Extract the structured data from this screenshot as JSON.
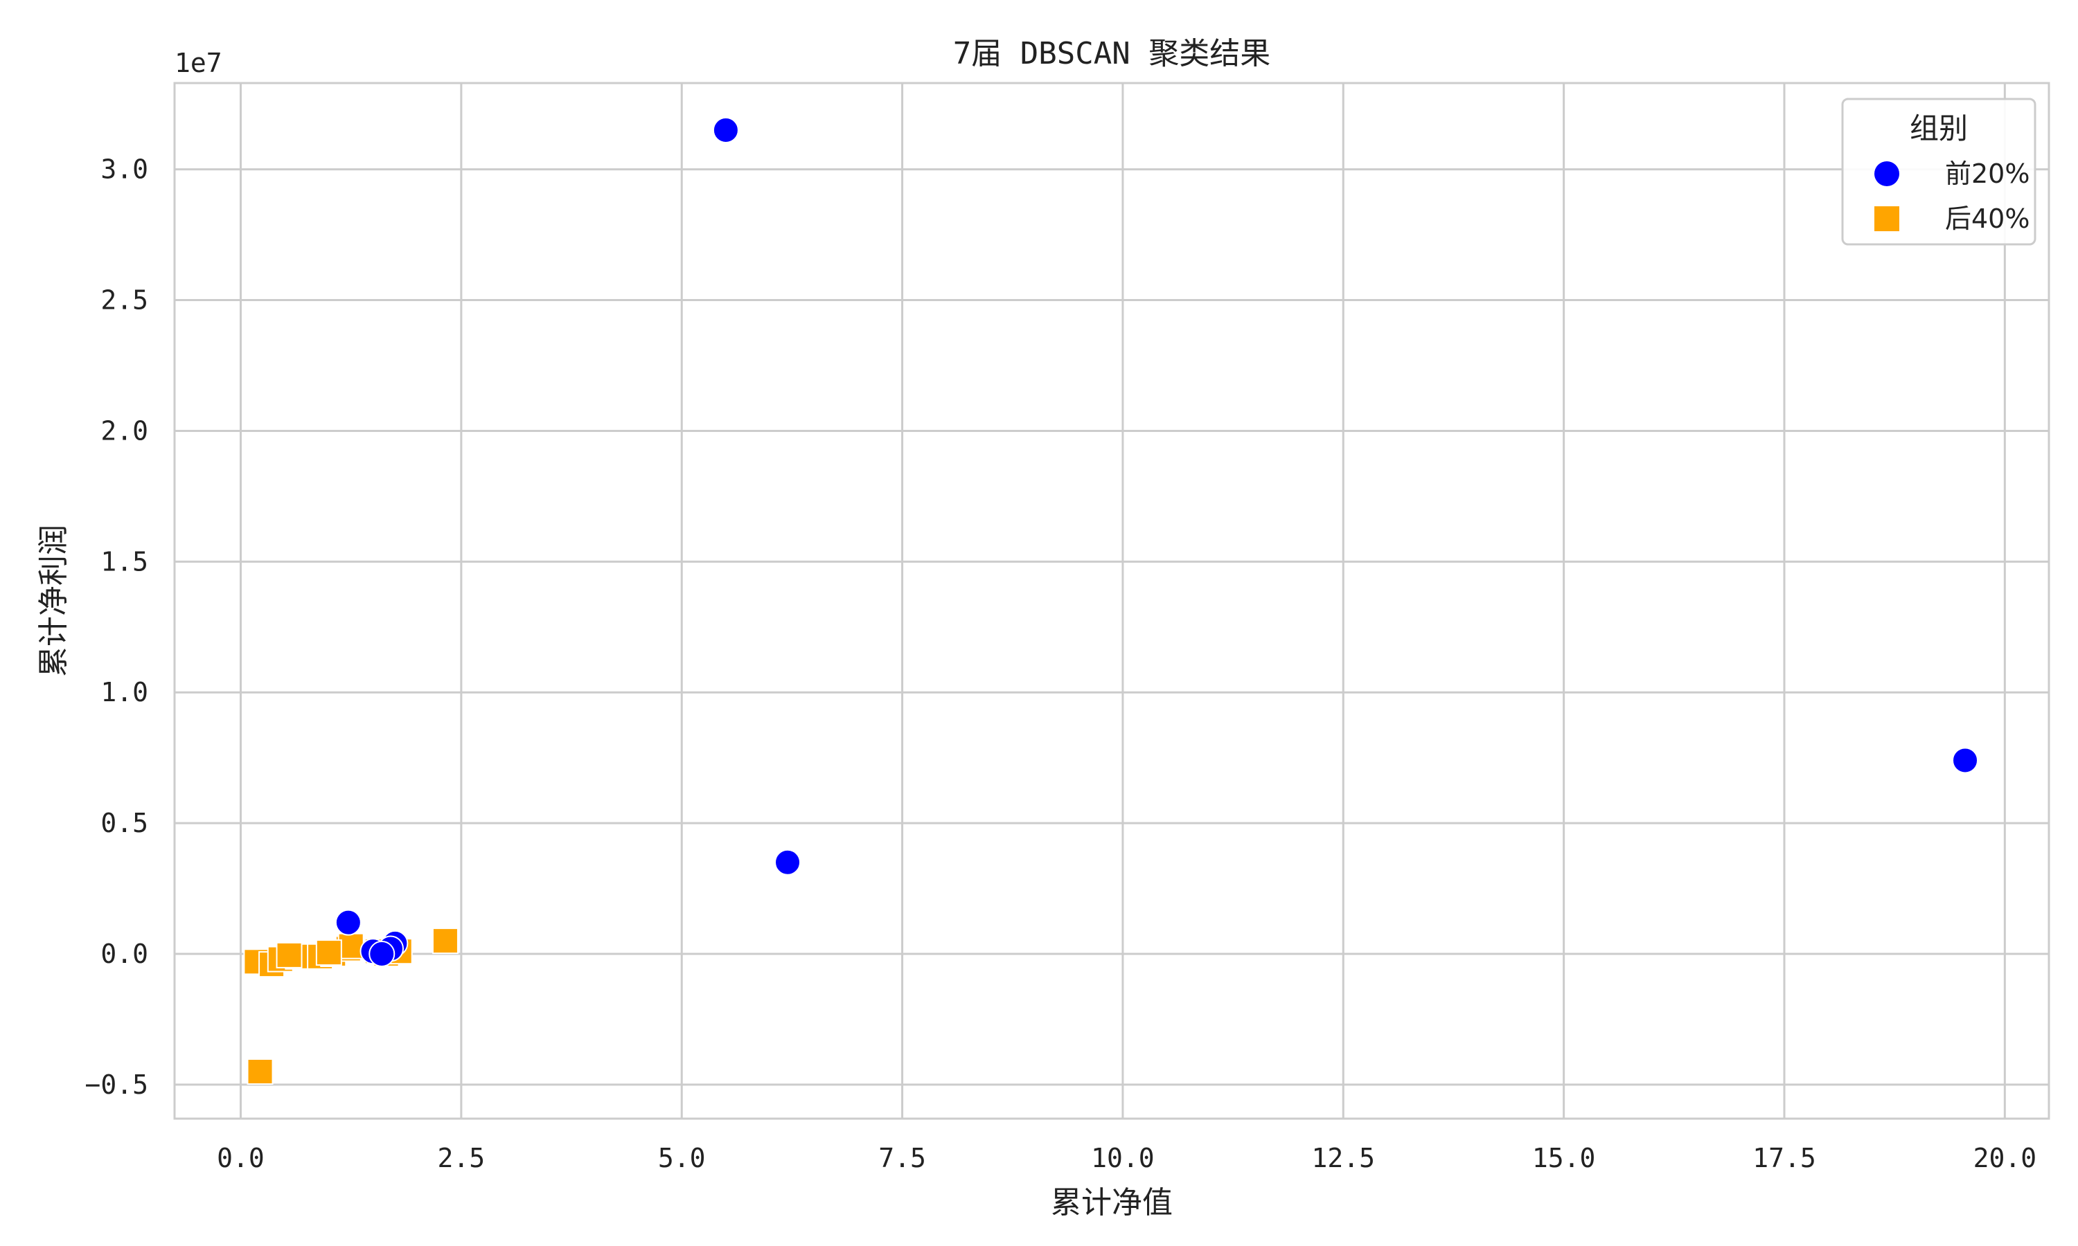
{
  "chart_data": {
    "type": "scatter",
    "title": "7届 DBSCAN 聚类结果",
    "xlabel": "累计净值",
    "ylabel": "累计净利润",
    "y_offset_label": "1e7",
    "xlim": [
      -0.75,
      20.5
    ],
    "ylim": [
      -0.63,
      3.33
    ],
    "x_ticks": [
      0.0,
      2.5,
      5.0,
      7.5,
      10.0,
      12.5,
      15.0,
      17.5,
      20.0
    ],
    "x_tick_labels": [
      "0.0",
      "2.5",
      "5.0",
      "7.5",
      "10.0",
      "12.5",
      "15.0",
      "17.5",
      "20.0"
    ],
    "y_ticks": [
      -0.5,
      0.0,
      0.5,
      1.0,
      1.5,
      2.0,
      2.5,
      3.0
    ],
    "y_tick_labels": [
      "−0.5",
      "0.0",
      "0.5",
      "1.0",
      "1.5",
      "2.0",
      "2.5",
      "3.0"
    ],
    "grid": true,
    "legend": {
      "title": "组别",
      "position": "top-right"
    },
    "series": [
      {
        "name": "前20%",
        "marker": "circle",
        "color": "#0000ff",
        "points": [
          {
            "x": 5.5,
            "y": 3.15
          },
          {
            "x": 6.2,
            "y": 0.35
          },
          {
            "x": 19.55,
            "y": 0.74
          },
          {
            "x": 1.22,
            "y": 0.12
          },
          {
            "x": 1.75,
            "y": 0.04
          },
          {
            "x": 1.5,
            "y": 0.01
          },
          {
            "x": 1.7,
            "y": 0.02
          },
          {
            "x": 1.6,
            "y": 0.0
          }
        ]
      },
      {
        "name": "后40%",
        "marker": "square",
        "color": "#ffa500",
        "points": [
          {
            "x": 0.22,
            "y": -0.45
          },
          {
            "x": 2.32,
            "y": 0.05
          },
          {
            "x": 0.18,
            "y": -0.03
          },
          {
            "x": 0.35,
            "y": -0.04
          },
          {
            "x": 0.45,
            "y": -0.02
          },
          {
            "x": 0.65,
            "y": -0.01
          },
          {
            "x": 0.9,
            "y": -0.01
          },
          {
            "x": 1.05,
            "y": 0.0
          },
          {
            "x": 1.22,
            "y": 0.02
          },
          {
            "x": 1.25,
            "y": 0.03
          },
          {
            "x": 1.55,
            "y": 0.01
          },
          {
            "x": 1.65,
            "y": 0.0
          },
          {
            "x": 1.8,
            "y": 0.01
          },
          {
            "x": 0.55,
            "y": -0.005
          },
          {
            "x": 1.0,
            "y": 0.005
          }
        ]
      }
    ]
  }
}
